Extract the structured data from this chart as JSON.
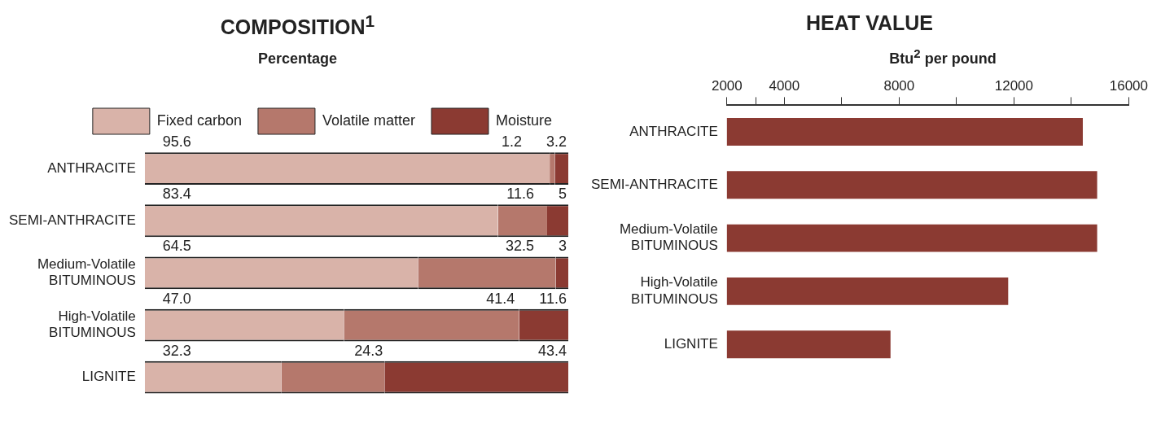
{
  "chart_data": [
    {
      "type": "bar",
      "title": "COMPOSITION$^{1}$",
      "subtitle": "Percentage",
      "orientation": "horizontal",
      "stacked": true,
      "legend": "top",
      "categories": [
        "ANTHRACITE",
        "SEMI-ANTHRACITE",
        "Medium-Volatile BITUMINOUS",
        "High-Volatile BITUMINOUS",
        "LIGNITE"
      ],
      "series": [
        {
          "name": "Fixed carbon",
          "color": "#d9b3a9",
          "values": [
            95.6,
            83.4,
            64.5,
            47.0,
            32.3
          ],
          "value_labels": [
            "95.6",
            "83.4",
            "64.5",
            "47.0",
            "32.3"
          ]
        },
        {
          "name": "Volatile matter",
          "color": "#b5786c",
          "values": [
            1.2,
            11.6,
            32.5,
            41.4,
            24.3
          ],
          "value_labels": [
            "1.2",
            "11.6",
            "32.5",
            "41.4",
            "24.3"
          ]
        },
        {
          "name": "Moisture",
          "color": "#8b3a32",
          "values": [
            3.2,
            5,
            3,
            11.6,
            43.4
          ],
          "value_labels": [
            "3.2",
            "5",
            "3",
            "11.6",
            "43.4"
          ]
        }
      ]
    },
    {
      "type": "bar",
      "title": "HEAT VALUE",
      "xlabel": "Btu$^{2}$ per pound",
      "orientation": "horizontal",
      "grid": false,
      "categories": [
        "ANTHRACITE",
        "SEMI-ANTHRACITE",
        "Medium-Volatile BITUMINOUS",
        "High-Volatile BITUMINOUS",
        "LIGNITE"
      ],
      "values": [
        14400,
        14900,
        14900,
        11800,
        7700
      ],
      "color": "#8b3a32",
      "xlim": [
        2000,
        16000
      ],
      "xticks": [
        2000,
        {
          "value": 3000,
          "label": null
        },
        4000,
        {
          "value": 6000,
          "label": null
        },
        8000,
        {
          "value": 10000,
          "label": null
        },
        12000,
        {
          "value": 14000,
          "label": null
        },
        16000
      ]
    }
  ]
}
